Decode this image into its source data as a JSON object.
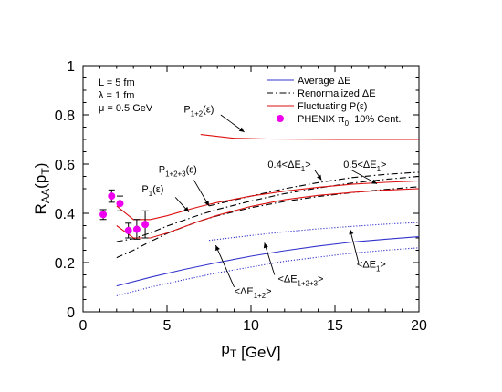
{
  "chart_data": {
    "type": "line",
    "title": "",
    "xlabel": {
      "main": "p",
      "sub": "T",
      "suffix": " [GeV]"
    },
    "ylabel": {
      "main": "R",
      "sub": "AA",
      "paren": "(p",
      "psub": "T",
      "end": ")"
    },
    "xlim": [
      0,
      20
    ],
    "ylim": [
      0,
      1
    ],
    "x_ticks": [
      0,
      5,
      10,
      15,
      20
    ],
    "x_tick_labels": [
      "0",
      "5",
      "10",
      "15",
      "20"
    ],
    "y_ticks": [
      0,
      0.2,
      0.4,
      0.6,
      0.8,
      1
    ],
    "y_tick_labels": [
      "0",
      "0.2",
      "0.4",
      "0.6",
      "0.8",
      "1"
    ],
    "grid": false,
    "legend_position": "top-right",
    "parameters": [
      "L = 5 fm",
      "λ = 1 fm",
      "μ = 0.5 GeV"
    ],
    "legend": [
      {
        "label": "Average ΔE",
        "style": "solid",
        "color": "#3333cc"
      },
      {
        "label": "Renormalized ΔE",
        "style": "dashdot",
        "color": "#000000"
      },
      {
        "label": "Fluctuating P(ε)",
        "style": "solid",
        "color": "#dd1111"
      },
      {
        "label": "PHENIX π",
        "sub": "0",
        "rest": ", 10% Cent.",
        "style": "marker",
        "color": "#ee00ee"
      }
    ],
    "series": [
      {
        "group": "Average ΔE",
        "style": "solid",
        "color": "#3333cc",
        "x": [
          2,
          4,
          6,
          8,
          10,
          12,
          14,
          16,
          18,
          20
        ],
        "y": [
          0.105,
          0.14,
          0.172,
          0.2,
          0.226,
          0.248,
          0.267,
          0.283,
          0.295,
          0.305
        ]
      },
      {
        "group": "Average ΔE",
        "style": "dotted",
        "color": "#3333cc",
        "x": [
          2,
          4,
          6,
          8,
          10,
          12,
          14,
          16,
          18,
          20
        ],
        "y": [
          0.065,
          0.1,
          0.13,
          0.158,
          0.182,
          0.205,
          0.222,
          0.238,
          0.25,
          0.26
        ]
      },
      {
        "group": "Average ΔE",
        "style": "dotted",
        "color": "#3333cc",
        "x": [
          7.5,
          10,
          12,
          14,
          16,
          18,
          20
        ],
        "y": [
          0.29,
          0.31,
          0.325,
          0.337,
          0.347,
          0.356,
          0.363
        ]
      },
      {
        "group": "Renormalized ΔE",
        "style": "dashdot",
        "color": "#000000",
        "x": [
          2,
          3,
          4,
          5,
          6,
          7,
          8,
          10,
          12,
          14,
          16,
          18,
          20
        ],
        "y": [
          0.285,
          0.297,
          0.32,
          0.348,
          0.372,
          0.395,
          0.416,
          0.45,
          0.48,
          0.503,
          0.523,
          0.538,
          0.55
        ]
      },
      {
        "group": "Renormalized ΔE",
        "style": "dashdot",
        "color": "#000000",
        "x": [
          2,
          3,
          4,
          5,
          6,
          7,
          8,
          10,
          12,
          14,
          16,
          18,
          20
        ],
        "y": [
          0.22,
          0.25,
          0.285,
          0.318,
          0.345,
          0.37,
          0.39,
          0.423,
          0.448,
          0.468,
          0.484,
          0.497,
          0.508
        ]
      },
      {
        "group": "Renormalized ΔE",
        "style": "dashdot",
        "color": "#000000",
        "x": [
          7.5,
          10,
          12,
          14,
          16,
          18,
          20
        ],
        "y": [
          0.43,
          0.47,
          0.5,
          0.525,
          0.545,
          0.558,
          0.567
        ]
      },
      {
        "group": "Fluctuating P(ε)",
        "style": "solid",
        "color": "#dd1111",
        "x": [
          7,
          9,
          11,
          13,
          15,
          17,
          20
        ],
        "y": [
          0.72,
          0.705,
          0.702,
          0.701,
          0.7,
          0.7,
          0.7
        ]
      },
      {
        "group": "Fluctuating P(ε)",
        "style": "solid",
        "color": "#dd1111",
        "x": [
          2,
          3,
          4,
          5,
          6,
          7,
          8,
          10,
          12,
          14,
          16,
          18,
          20
        ],
        "y": [
          0.43,
          0.375,
          0.375,
          0.39,
          0.41,
          0.428,
          0.444,
          0.47,
          0.49,
          0.506,
          0.518,
          0.526,
          0.532
        ]
      },
      {
        "group": "Fluctuating P(ε)",
        "style": "solid",
        "color": "#dd1111",
        "x": [
          2,
          3,
          4,
          5,
          6,
          7,
          8,
          10,
          12,
          14,
          16,
          18,
          20
        ],
        "y": [
          0.35,
          0.3,
          0.3,
          0.32,
          0.345,
          0.37,
          0.392,
          0.428,
          0.455,
          0.473,
          0.485,
          0.494,
          0.5
        ]
      }
    ],
    "phenix_points": [
      {
        "x": 1.2,
        "y": 0.395,
        "err": 0.02
      },
      {
        "x": 1.7,
        "y": 0.47,
        "err": 0.025
      },
      {
        "x": 2.2,
        "y": 0.44,
        "err": 0.03
      },
      {
        "x": 2.7,
        "y": 0.33,
        "err": 0.03
      },
      {
        "x": 3.2,
        "y": 0.335,
        "err": 0.04
      },
      {
        "x": 3.7,
        "y": 0.355,
        "err": 0.055
      }
    ],
    "annotations": [
      {
        "main": "P",
        "sub": "1+2",
        "rest": "(ε)",
        "x": 6.0,
        "y": 0.81
      },
      {
        "main": "P",
        "sub": "1+2+3",
        "rest": "(ε)",
        "x": 4.5,
        "y": 0.565
      },
      {
        "main": "P",
        "sub": "1",
        "rest": "(ε)",
        "x": 3.5,
        "y": 0.485
      },
      {
        "main": "0.4<ΔE",
        "sub": "1",
        "rest": ">",
        "x": 11.0,
        "y": 0.585
      },
      {
        "main": "0.5<ΔE",
        "sub": "1",
        "rest": ">",
        "x": 15.5,
        "y": 0.585
      },
      {
        "main": "<ΔE",
        "sub": "1+2",
        "rest": ">",
        "x": 9.0,
        "y": 0.07
      },
      {
        "main": "<ΔE",
        "sub": "1+2+3",
        "rest": ">",
        "x": 11.6,
        "y": 0.12
      },
      {
        "main": "<ΔE",
        "sub": "1",
        "rest": ">",
        "x": 16.3,
        "y": 0.18
      }
    ],
    "arrows": [
      {
        "from": [
          8.2,
          0.8
        ],
        "to": [
          9.6,
          0.73
        ]
      },
      {
        "from": [
          6.6,
          0.535
        ],
        "to": [
          7.5,
          0.43
        ]
      },
      {
        "from": [
          5.5,
          0.465
        ],
        "to": [
          6.3,
          0.405
        ]
      },
      {
        "from": [
          13.8,
          0.575
        ],
        "to": [
          14.2,
          0.535
        ]
      },
      {
        "from": [
          16.0,
          0.575
        ],
        "to": [
          17.5,
          0.52
        ]
      },
      {
        "from": [
          9.0,
          0.1
        ],
        "to": [
          7.9,
          0.27
        ]
      },
      {
        "from": [
          11.4,
          0.15
        ],
        "to": [
          10.8,
          0.28
        ]
      },
      {
        "from": [
          16.4,
          0.2
        ],
        "to": [
          15.9,
          0.335
        ]
      }
    ]
  }
}
